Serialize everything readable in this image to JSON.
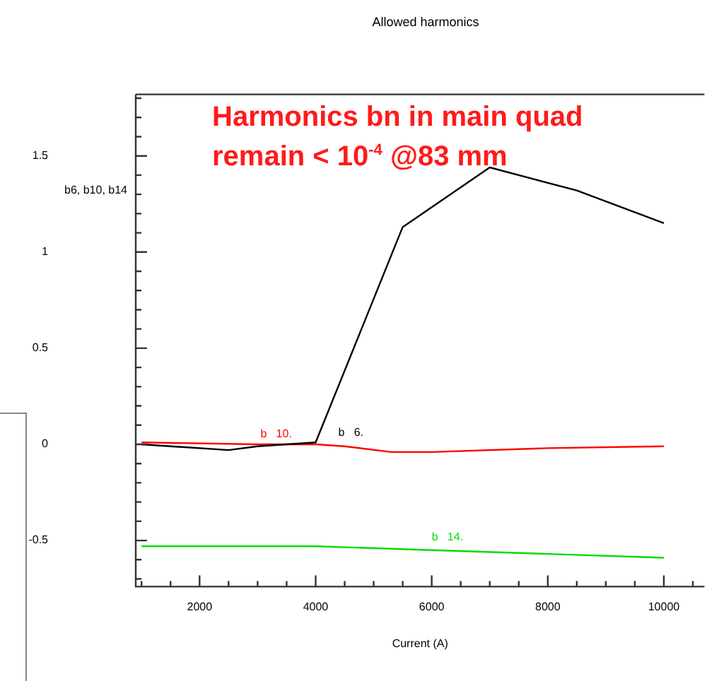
{
  "chart_data": {
    "type": "line",
    "title": "Allowed harmonics",
    "xlabel": "Current (A)",
    "ylabel": "b6, b10, b14",
    "annotations": [
      "Harmonics  bn in main  quad",
      "remain < 10$^{-4}$  @83 mm"
    ],
    "series": [
      {
        "name": "b   6.",
        "color": "#000000",
        "x": [
          1000,
          2500,
          3000,
          4000,
          5500,
          7000,
          8500,
          10000
        ],
        "values": [
          0,
          -0.03,
          -0.01,
          0.01,
          1.13,
          1.44,
          1.32,
          1.15
        ]
      },
      {
        "name": "b   10.",
        "color": "#ff0000",
        "x": [
          1000,
          3000,
          4000,
          4500,
          5300,
          6000,
          8000,
          10000
        ],
        "values": [
          0.01,
          0,
          0,
          -0.01,
          -0.04,
          -0.04,
          -0.02,
          -0.01
        ]
      },
      {
        "name": "b   14.",
        "color": "#00dd00",
        "x": [
          1000,
          4000,
          6000,
          8000,
          10000
        ],
        "values": [
          -0.53,
          -0.53,
          -0.55,
          -0.57,
          -0.59
        ]
      }
    ],
    "xlim": [
      900,
      10700
    ],
    "ylim": [
      -0.74,
      1.82
    ],
    "xticks": [
      {
        "value": 1000,
        "label": null
      },
      {
        "value": 1500,
        "label": null
      },
      2000,
      {
        "value": 2500,
        "label": null
      },
      {
        "value": 3000,
        "label": null
      },
      {
        "value": 3500,
        "label": null
      },
      4000,
      {
        "value": 4500,
        "label": null
      },
      {
        "value": 5000,
        "label": null
      },
      {
        "value": 5500,
        "label": null
      },
      6000,
      {
        "value": 6500,
        "label": null
      },
      {
        "value": 7000,
        "label": null
      },
      {
        "value": 7500,
        "label": null
      },
      8000,
      {
        "value": 8500,
        "label": null
      },
      {
        "value": 9000,
        "label": null
      },
      {
        "value": 9500,
        "label": null
      },
      10000,
      {
        "value": 10500,
        "label": null
      }
    ],
    "yticks": [
      {
        "value": -0.7,
        "label": null
      },
      {
        "value": -0.6,
        "label": null
      },
      -0.5,
      {
        "value": -0.4,
        "label": null
      },
      {
        "value": -0.3,
        "label": null
      },
      {
        "value": -0.2,
        "label": null
      },
      {
        "value": -0.1,
        "label": null
      },
      0,
      {
        "value": 0.1,
        "label": null
      },
      {
        "value": 0.2,
        "label": null
      },
      {
        "value": 0.3,
        "label": null
      },
      {
        "value": 0.4,
        "label": null
      },
      0.5,
      {
        "value": 0.6,
        "label": null
      },
      {
        "value": 0.7,
        "label": null
      },
      {
        "value": 0.8,
        "label": null
      },
      {
        "value": 0.9,
        "label": null
      },
      1,
      {
        "value": 1.1,
        "label": null
      },
      {
        "value": 1.2,
        "label": null
      },
      {
        "value": 1.3,
        "label": null
      },
      {
        "value": 1.4,
        "label": null
      },
      1.5,
      {
        "value": 1.6,
        "label": null
      },
      {
        "value": 1.7,
        "label": null
      },
      {
        "value": 1.8,
        "label": null
      }
    ],
    "grid": false,
    "legend": false,
    "marker": "none",
    "line_style": "solid"
  }
}
